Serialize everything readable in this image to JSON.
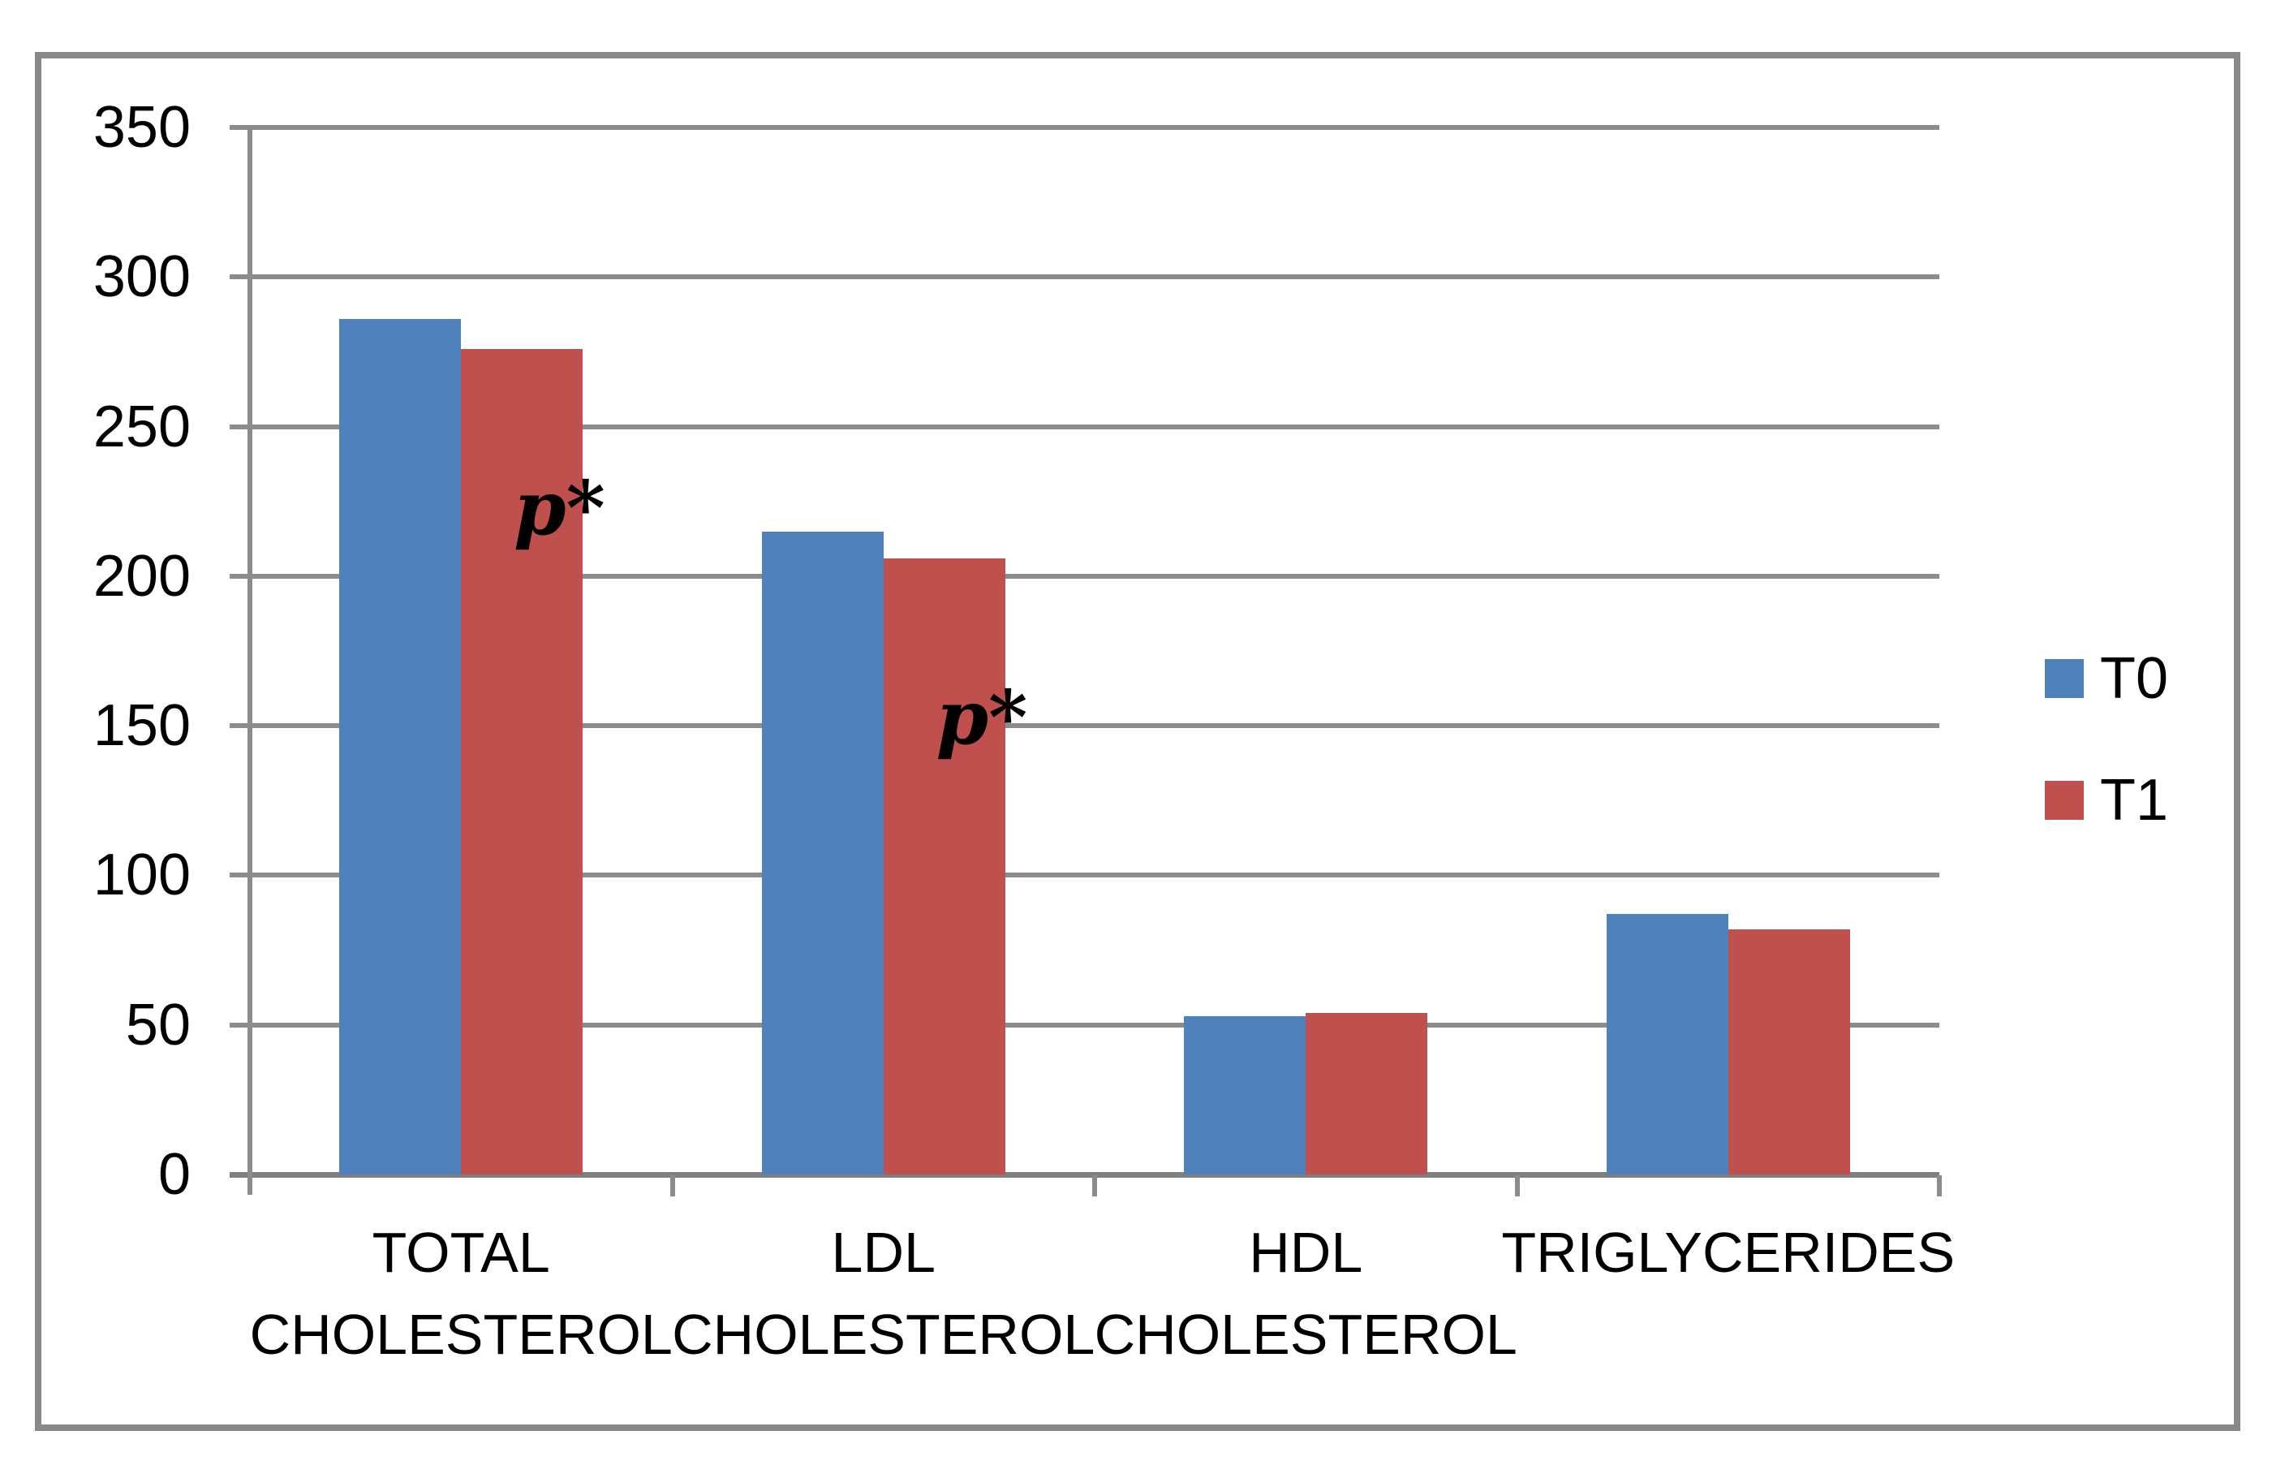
{
  "figure": {
    "background_color": "#FFFFFF",
    "border_color": "#898989"
  },
  "chart_data": {
    "type": "bar",
    "title": "",
    "xlabel": "",
    "ylabel": "",
    "categories": [
      {
        "lines": [
          "TOTAL",
          "CHOLESTEROL"
        ]
      },
      {
        "lines": [
          "LDL",
          "CHOLESTEROL"
        ]
      },
      {
        "lines": [
          "HDL",
          "CHOLESTEROL"
        ]
      },
      {
        "lines": [
          "TRIGLYCERIDES"
        ]
      }
    ],
    "series": [
      {
        "name": "T0",
        "color": "#4F81BD",
        "values": [
          286,
          215,
          53,
          87
        ]
      },
      {
        "name": "T1",
        "color": "#C0504D",
        "values": [
          276,
          206,
          54,
          82
        ]
      }
    ],
    "ylim": [
      0,
      350
    ],
    "ytick_step": 50,
    "ytick_labels": [
      "350",
      "300",
      "250",
      "200",
      "150",
      "100",
      "50",
      "0"
    ],
    "grid": true,
    "gridline_color": "#8C8C8C",
    "axis_color": "#8C8C8C",
    "text_color": "#000000",
    "legend_position": "right",
    "legend_entries": [
      "T0",
      "T1"
    ],
    "annotations": [
      {
        "text": "p*",
        "category_index": 0,
        "series_index": 1
      },
      {
        "text": "p*",
        "category_index": 1,
        "series_index": 1
      }
    ]
  }
}
